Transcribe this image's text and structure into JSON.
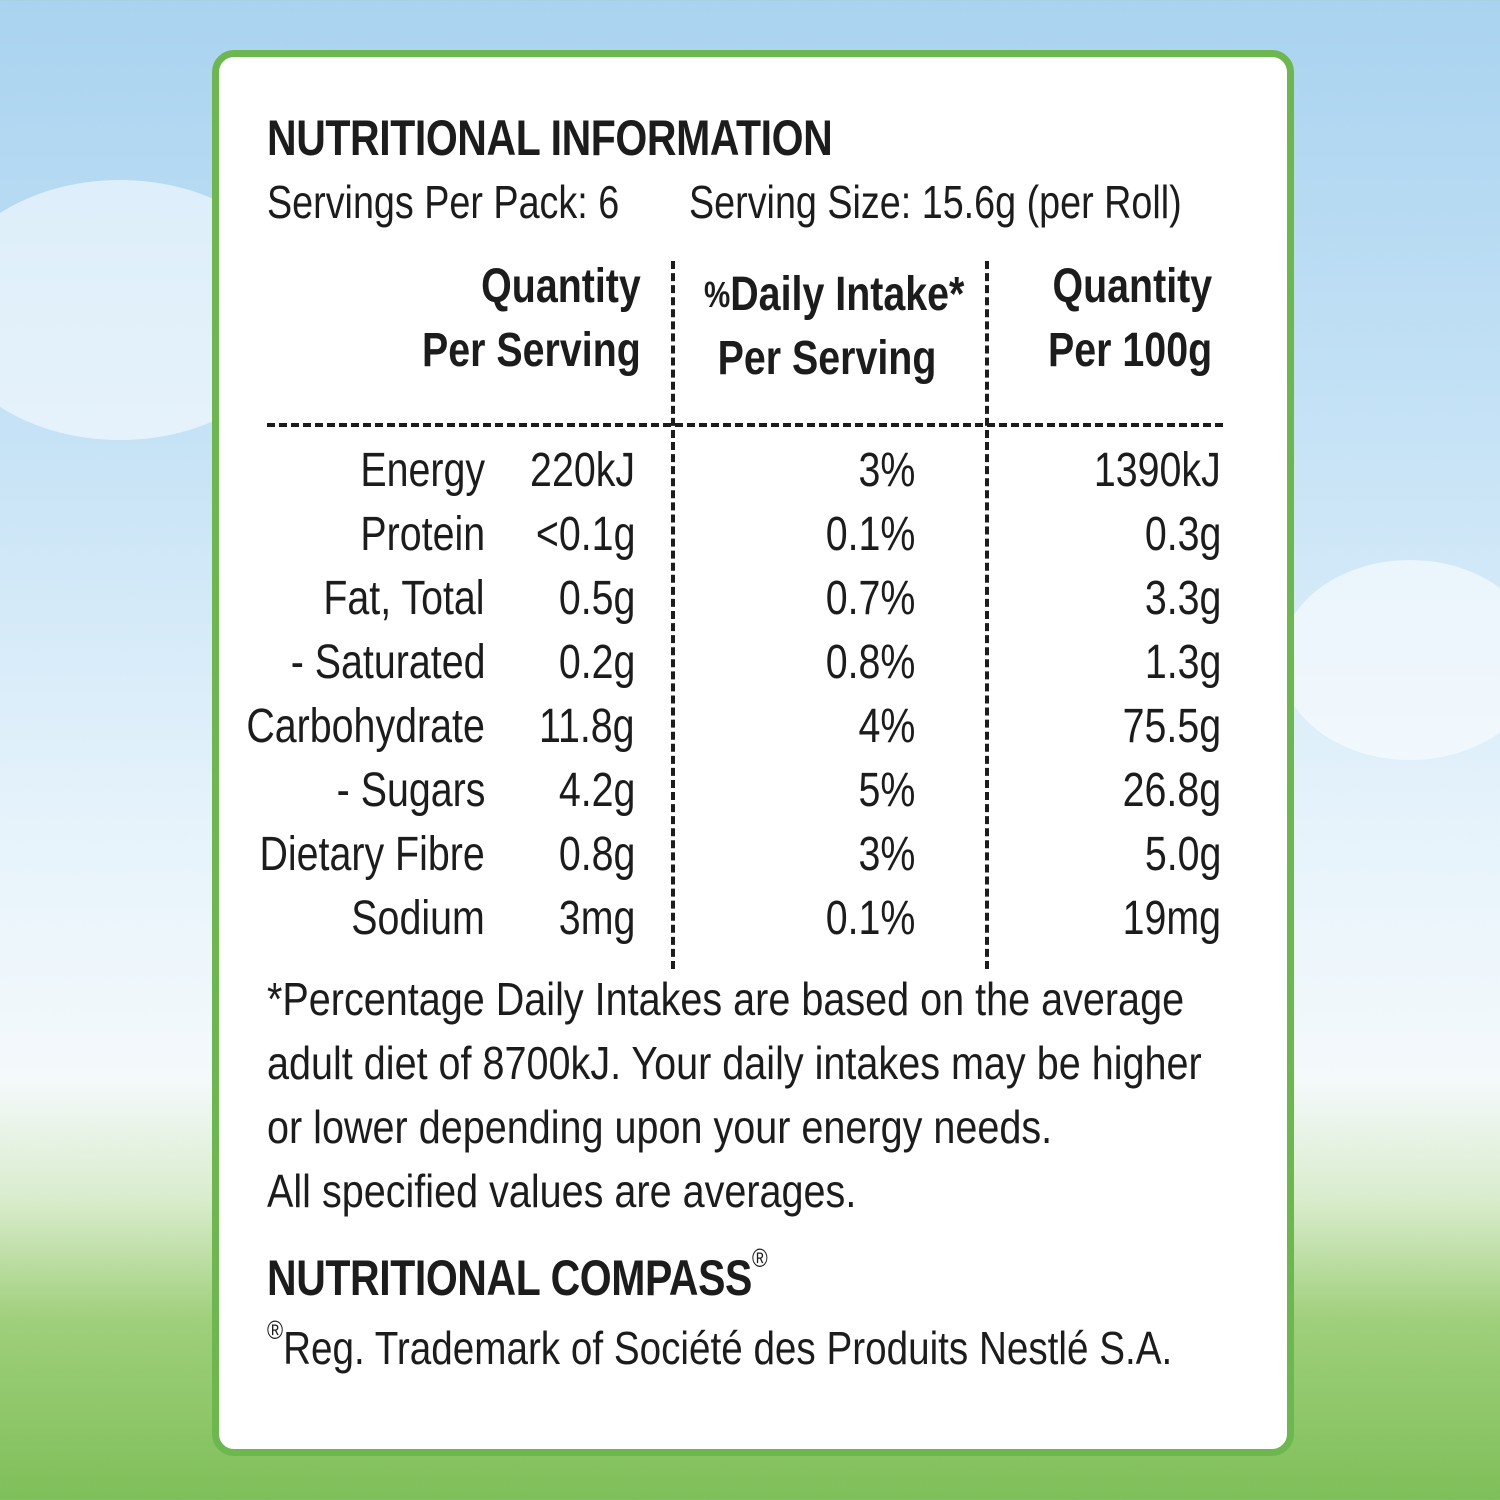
{
  "title": "NUTRITIONAL INFORMATION",
  "servings_per_pack": "Servings Per Pack: 6",
  "serving_size": "Serving Size: 15.6g (per Roll)",
  "columns": {
    "qty_serving_line1": "Quantity",
    "qty_serving_line2": "Per Serving",
    "di_line1_prefix": "%",
    "di_line1": "Daily Intake*",
    "di_line2": "Per Serving",
    "qty_100g_line1": "Quantity",
    "qty_100g_line2": "Per 100g"
  },
  "rows": [
    {
      "label": "Energy",
      "per_serving": "220kJ",
      "daily_intake": "3%",
      "per_100g": "1390kJ"
    },
    {
      "label": "Protein",
      "per_serving": "<0.1g",
      "daily_intake": "0.1%",
      "per_100g": "0.3g"
    },
    {
      "label": "Fat, Total",
      "per_serving": "0.5g",
      "daily_intake": "0.7%",
      "per_100g": "3.3g"
    },
    {
      "label": "- Saturated",
      "per_serving": "0.2g",
      "daily_intake": "0.8%",
      "per_100g": "1.3g"
    },
    {
      "label": "Carbohydrate",
      "per_serving": "11.8g",
      "daily_intake": "4%",
      "per_100g": "75.5g"
    },
    {
      "label": "- Sugars",
      "per_serving": "4.2g",
      "daily_intake": "5%",
      "per_100g": "26.8g"
    },
    {
      "label": "Dietary Fibre",
      "per_serving": "0.8g",
      "daily_intake": "3%",
      "per_100g": "5.0g"
    },
    {
      "label": "Sodium",
      "per_serving": "3mg",
      "daily_intake": "0.1%",
      "per_100g": "19mg"
    }
  ],
  "footnote": {
    "line1": "*Percentage Daily Intakes are based on the average",
    "line2": "adult diet of 8700kJ. Your daily intakes may be higher",
    "line3": "or lower depending upon your energy needs.",
    "line4": "All specified values are averages."
  },
  "compass": {
    "title": "NUTRITIONAL COMPASS",
    "title_mark": "®",
    "trademark_mark": "®",
    "trademark": "Reg. Trademark of Société des Produits Nestlé S.A."
  },
  "colors": {
    "border": "#6cb84e",
    "text": "#1c1c1c",
    "sky": "#a9d3f0",
    "grass": "#7fbf59"
  }
}
